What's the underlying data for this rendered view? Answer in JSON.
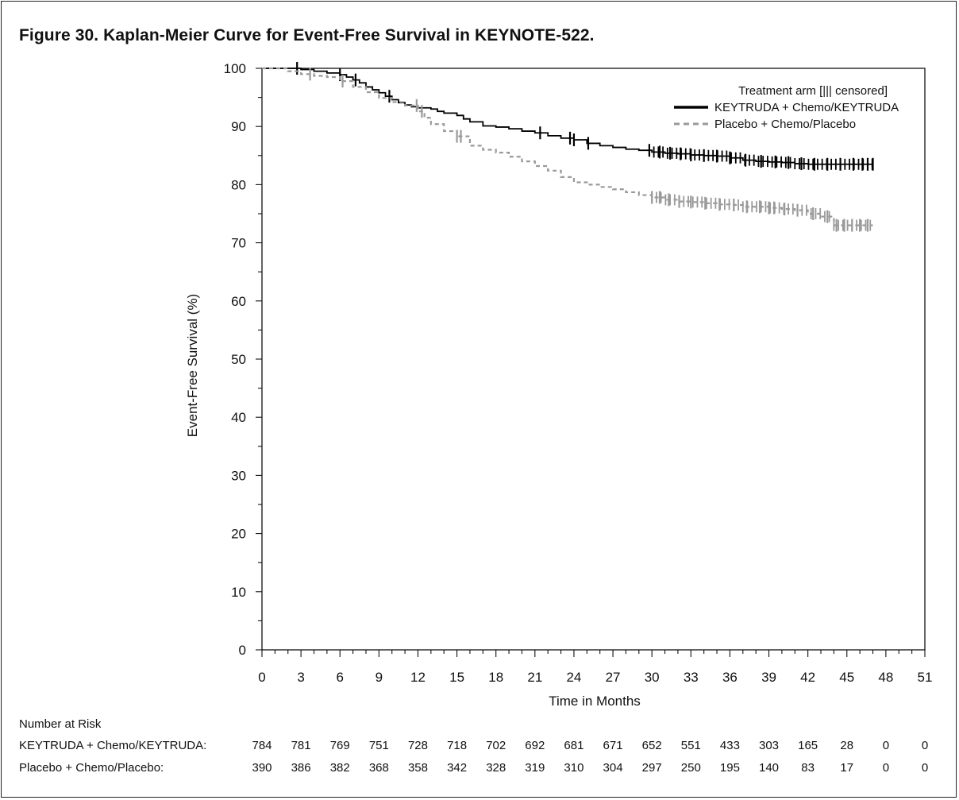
{
  "figure_title": "Figure 30. Kaplan-Meier Curve for Event-Free Survival in KEYNOTE-522.",
  "chart_data": {
    "type": "line",
    "title": "Figure 30. Kaplan-Meier Curve for Event-Free Survival in KEYNOTE-522.",
    "xlabel": "Time in Months",
    "ylabel": "Event-Free Survival (%)",
    "xlim": [
      0,
      51
    ],
    "ylim": [
      0,
      100
    ],
    "xticks": [
      "0",
      "3",
      "6",
      "9",
      "12",
      "15",
      "18",
      "21",
      "24",
      "27",
      "30",
      "33",
      "36",
      "39",
      "42",
      "45",
      "48",
      "51"
    ],
    "yticks": [
      "100",
      "90",
      "80",
      "70",
      "60",
      "50",
      "40",
      "30",
      "20",
      "10",
      "0"
    ],
    "legend": {
      "title": "Treatment arm [||| censored]",
      "position": "top-right"
    },
    "series": [
      {
        "name": "KEYTRUDA + Chemo/KEYTRUDA",
        "style": "solid",
        "color": "#000000",
        "x": [
          0,
          1,
          2,
          3,
          4,
          5,
          6,
          6.5,
          7,
          7.5,
          8,
          8.5,
          9,
          9.5,
          10,
          10.5,
          11,
          11.5,
          12,
          13,
          13.5,
          14,
          15,
          15.5,
          16,
          17,
          18,
          19,
          20,
          21,
          22,
          23,
          24,
          25,
          26,
          27,
          28,
          29,
          30,
          31,
          32,
          33,
          34,
          35,
          36,
          37,
          38,
          39,
          40,
          41,
          42,
          43,
          44,
          45,
          46,
          47
        ],
        "y": [
          100,
          100,
          100,
          99.8,
          99.5,
          99.2,
          98.9,
          98.5,
          98.0,
          97.5,
          96.8,
          96.3,
          95.8,
          95.2,
          94.6,
          94.1,
          93.7,
          93.4,
          93.2,
          93.0,
          92.6,
          92.3,
          91.9,
          91.3,
          90.8,
          90.1,
          89.9,
          89.6,
          89.2,
          88.9,
          88.4,
          88.0,
          87.7,
          87.1,
          86.7,
          86.4,
          86.1,
          85.9,
          85.6,
          85.4,
          85.3,
          85.1,
          85.0,
          84.9,
          84.6,
          84.2,
          84.0,
          83.9,
          83.8,
          83.6,
          83.5,
          83.5,
          83.5,
          83.5,
          83.5,
          83.5
        ],
        "censored_x": [
          2.7,
          6.0,
          7.2,
          9.8,
          21.4,
          23.7,
          24.0,
          25.1,
          29.8,
          30.6,
          31.4,
          32.2,
          33.0,
          34.0,
          35.0,
          36.0,
          37.2,
          38.4,
          39.5,
          40.5,
          41.5,
          42.5,
          43.5,
          44.5,
          45.5,
          46.2,
          46.6,
          47.0
        ]
      },
      {
        "name": "Placebo + Chemo/Placebo",
        "style": "dashed",
        "color": "#9a9a9a",
        "x": [
          0,
          1,
          2,
          3,
          4,
          5,
          6,
          7,
          8,
          9,
          10,
          11,
          12,
          12.5,
          13,
          14,
          15,
          16,
          17,
          18,
          19,
          20,
          21,
          22,
          23,
          24,
          25,
          26,
          27,
          28,
          29,
          30,
          31,
          32,
          33,
          34,
          35,
          36,
          37,
          38,
          39,
          40,
          41,
          42,
          43,
          44,
          45,
          46,
          47
        ],
        "y": [
          100,
          100,
          99.5,
          99.0,
          98.7,
          98.5,
          97.8,
          96.8,
          95.9,
          94.9,
          94.2,
          93.6,
          92.6,
          91.5,
          90.4,
          89.2,
          88.3,
          86.7,
          86.0,
          85.5,
          84.8,
          84.0,
          83.2,
          82.4,
          81.3,
          80.4,
          80.0,
          79.6,
          79.2,
          78.7,
          78.2,
          77.8,
          77.4,
          77.1,
          77.0,
          76.8,
          76.6,
          76.5,
          76.2,
          76.2,
          76.0,
          75.8,
          75.6,
          75.0,
          74.5,
          73.0,
          73.0,
          73.0,
          73.0
        ],
        "censored_x": [
          3.7,
          6.2,
          11.9,
          12.3,
          15.0,
          15.3,
          30.0,
          30.6,
          31.3,
          32.1,
          33.0,
          34.1,
          35.2,
          36.3,
          37.3,
          38.3,
          39.0,
          39.4,
          40.2,
          41.2,
          42.4,
          43.5,
          44.2,
          44.8,
          45.4,
          46.0,
          46.6
        ]
      }
    ]
  },
  "risk_table": {
    "header": "Number at Risk",
    "time_points": [
      "0",
      "3",
      "6",
      "9",
      "12",
      "15",
      "18",
      "21",
      "24",
      "27",
      "30",
      "33",
      "36",
      "39",
      "42",
      "45",
      "48",
      "51"
    ],
    "rows": [
      {
        "label": "KEYTRUDA + Chemo/KEYTRUDA:",
        "values": [
          "784",
          "781",
          "769",
          "751",
          "728",
          "718",
          "702",
          "692",
          "681",
          "671",
          "652",
          "551",
          "433",
          "303",
          "165",
          "28",
          "0",
          "0"
        ]
      },
      {
        "label": "Placebo + Chemo/Placebo:",
        "values": [
          "390",
          "386",
          "382",
          "368",
          "358",
          "342",
          "328",
          "319",
          "310",
          "304",
          "297",
          "250",
          "195",
          "140",
          "83",
          "17",
          "0",
          "0"
        ]
      }
    ]
  }
}
